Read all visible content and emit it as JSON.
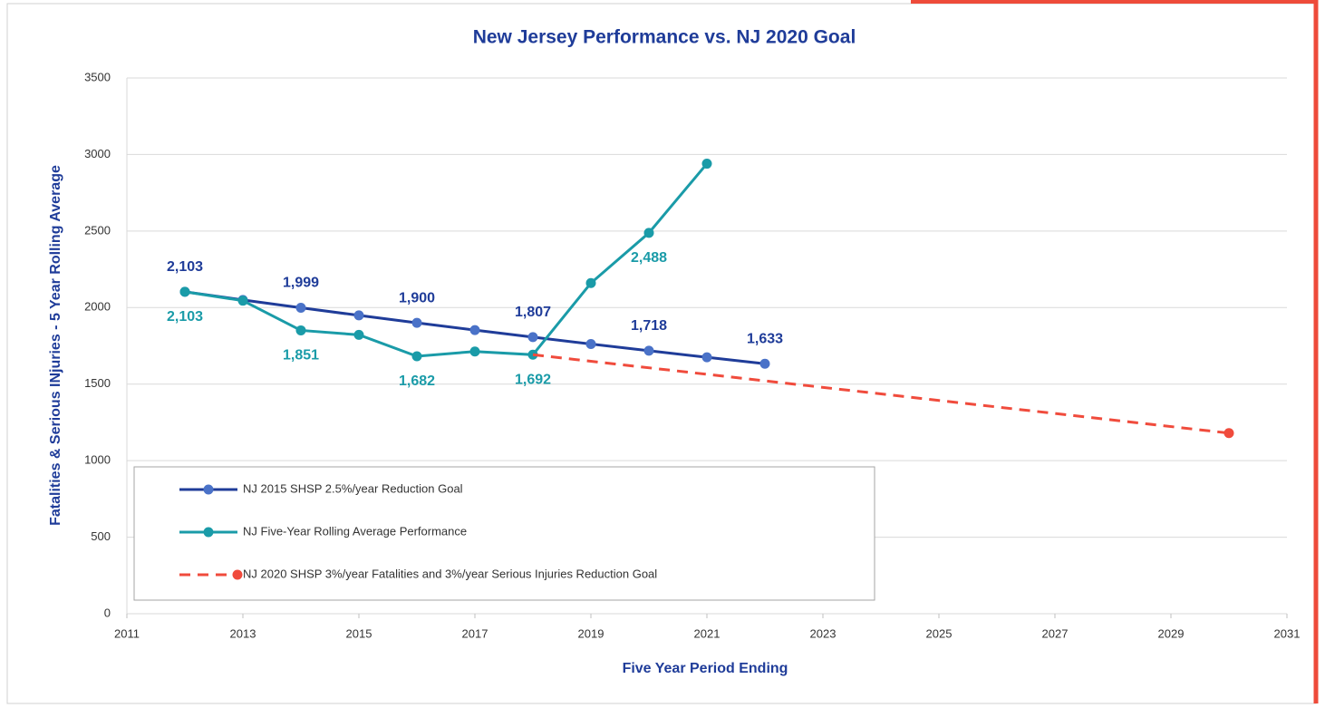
{
  "chart_data": {
    "type": "line",
    "title": "New Jersey Performance vs. NJ 2020 Goal",
    "x_label": "Five Year Period Ending",
    "y_label": "Fatalities & Serious INjuries - 5 Year Rolling Average",
    "xlim": [
      2011,
      2031
    ],
    "xticks": [
      2011,
      2013,
      2015,
      2017,
      2019,
      2021,
      2023,
      2025,
      2027,
      2029,
      2031
    ],
    "ylim": [
      0,
      3500
    ],
    "yticks": [
      0,
      500,
      1000,
      1500,
      2000,
      2500,
      3000,
      3500
    ],
    "grid": true,
    "legend": "lower left",
    "series": [
      {
        "name": "NJ 2015 SHSP 2.5%/year Reduction Goal",
        "color": "#1f3c99",
        "marker_color": "#4a72c8",
        "dashed": false,
        "markers": "all",
        "label_position": "above",
        "x": [
          2012,
          2013,
          2014,
          2015,
          2016,
          2017,
          2018,
          2019,
          2020,
          2021,
          2022
        ],
        "values": [
          2103,
          2050,
          1999,
          1949,
          1900,
          1853,
          1807,
          1762,
          1718,
          1675,
          1633
        ],
        "value_labels": [
          "2,103",
          null,
          "1,999",
          null,
          "1,900",
          null,
          "1,807",
          null,
          "1,718",
          null,
          "1,633"
        ]
      },
      {
        "name": "NJ Five-Year Rolling Average Performance",
        "color": "#1a9ba8",
        "marker_color": "#1a9ba8",
        "dashed": false,
        "markers": "all",
        "label_position": "below",
        "x": [
          2012,
          2013,
          2014,
          2015,
          2016,
          2017,
          2018,
          2019,
          2020,
          2021
        ],
        "values": [
          2103,
          2045,
          1851,
          1822,
          1682,
          1713,
          1692,
          2160,
          2488,
          2940
        ],
        "value_labels": [
          "2,103",
          null,
          "1,851",
          null,
          "1,682",
          null,
          "1,692",
          null,
          "2,488",
          null
        ]
      },
      {
        "name": "NJ 2020 SHSP 3%/year Fatalities and 3%/year Serious Injuries Reduction Goal",
        "color": "#f04b3c",
        "marker_color": "#f04b3c",
        "dashed": true,
        "markers": "last",
        "x": [
          2018,
          2030
        ],
        "values": [
          1692,
          1180
        ]
      }
    ]
  }
}
